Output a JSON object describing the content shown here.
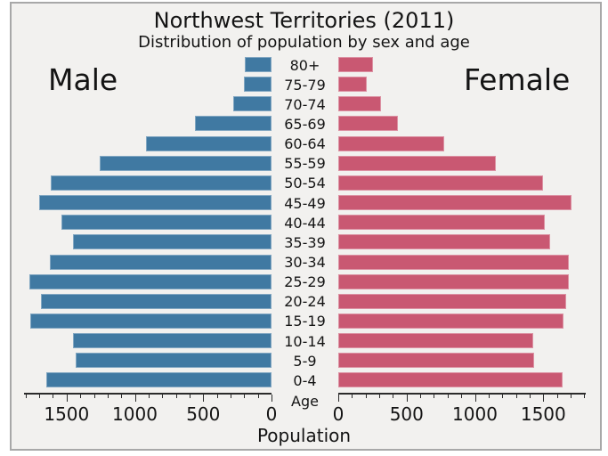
{
  "title": "Northwest Territories (2011)",
  "subtitle": "Distribution of population by sex and age",
  "colors": {
    "male_bar": "#4079a2",
    "female_bar": "#c95872",
    "background": "#f2f1ef",
    "figure_border": "#a8a8a8",
    "axis": "#2b2b2b",
    "text": "#141414"
  },
  "chart_data": {
    "type": "bar",
    "variant": "population-pyramid",
    "title": "Northwest Territories (2011)",
    "subtitle": "Distribution of population by sex and age",
    "xlabel": "Population",
    "center_label": "Age",
    "legend_position": "in-plot side labels",
    "grid": false,
    "categories_top_to_bottom": [
      "80+",
      "75-79",
      "70-74",
      "65-69",
      "60-64",
      "55-59",
      "50-54",
      "45-49",
      "40-44",
      "35-39",
      "30-34",
      "25-29",
      "20-24",
      "15-19",
      "10-14",
      "5-9",
      "0-4"
    ],
    "series": [
      {
        "name": "Male",
        "side": "left",
        "values": [
          195,
          205,
          280,
          560,
          920,
          1255,
          1615,
          1700,
          1540,
          1450,
          1625,
          1775,
          1690,
          1765,
          1450,
          1435,
          1650
        ]
      },
      {
        "name": "Female",
        "side": "right",
        "values": [
          255,
          205,
          315,
          435,
          775,
          1150,
          1500,
          1705,
          1510,
          1550,
          1690,
          1685,
          1665,
          1645,
          1425,
          1435,
          1640
        ]
      }
    ],
    "axis_tick_labels_left": [
      "1500",
      "1000",
      "500",
      "0"
    ],
    "axis_tick_labels_right": [
      "0",
      "500",
      "1000",
      "1500"
    ],
    "axis_major_ticks": [
      0,
      500,
      1000,
      1500
    ],
    "minor_tick_step": 100,
    "major_tick_step": 500,
    "xlim_each_side": [
      0,
      1810
    ]
  }
}
